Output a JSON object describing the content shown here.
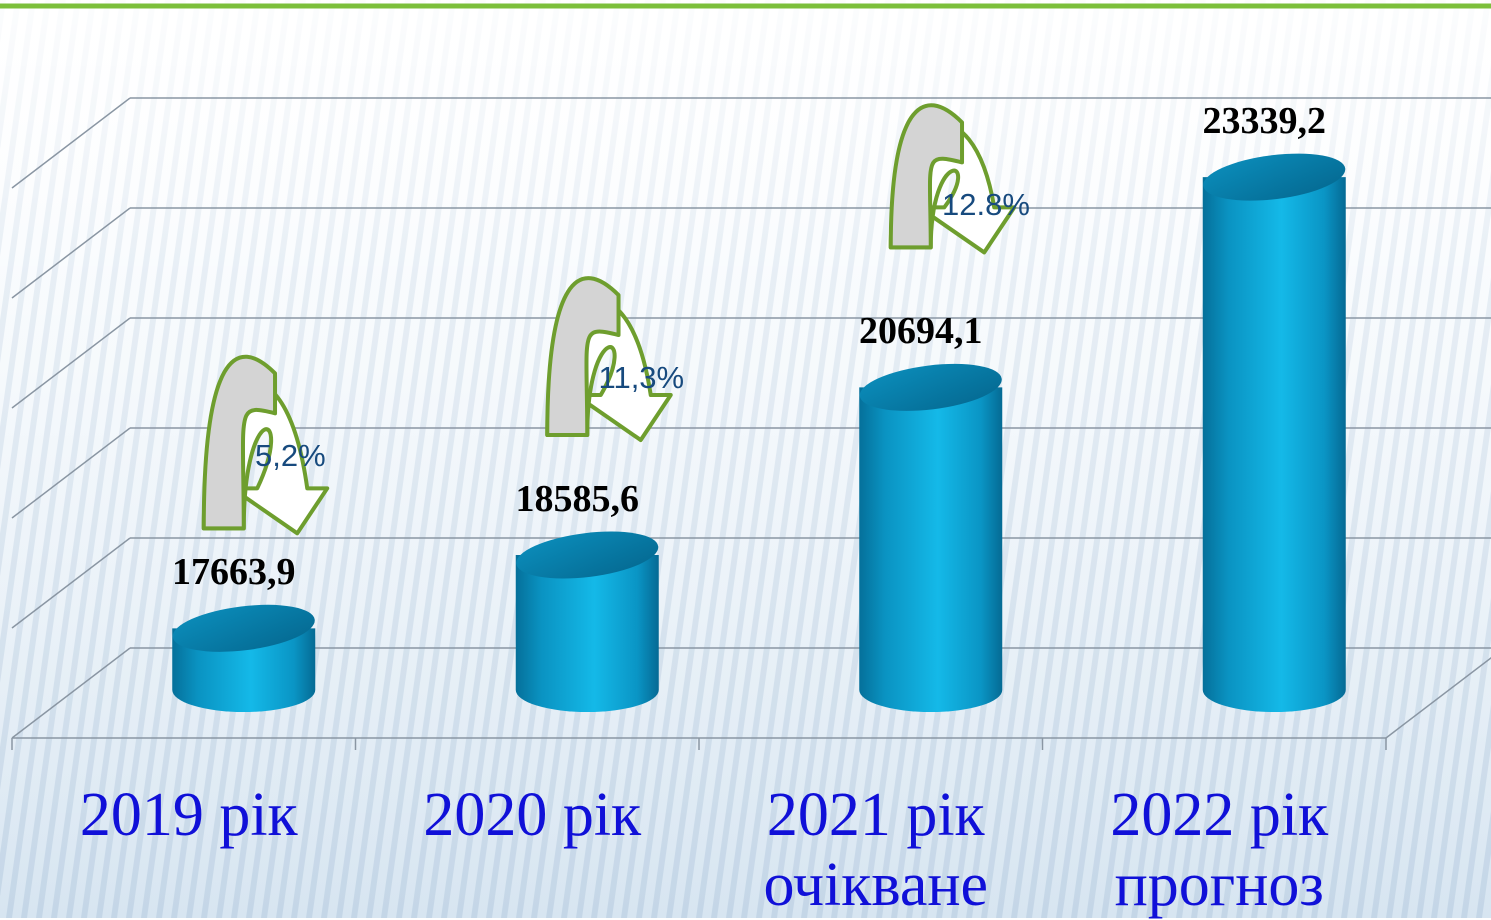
{
  "chart_data": {
    "type": "bar",
    "style": "3d-cylinder",
    "categories": [
      {
        "line1": "2019 рік",
        "line2": ""
      },
      {
        "line1": "2020 рік",
        "line2": ""
      },
      {
        "line1": "2021 рік",
        "line2": "очікване"
      },
      {
        "line1": "2022 рік",
        "line2": "прогноз"
      }
    ],
    "values": [
      17663.9,
      18585.6,
      20694.1,
      23339.2
    ],
    "value_labels": [
      "17663,9",
      "18585,6",
      "20694,1",
      "23339,2"
    ],
    "growth_arrows": [
      {
        "from": 0,
        "to": 1,
        "label": "5,2%"
      },
      {
        "from": 1,
        "to": 2,
        "label": "11,3%"
      },
      {
        "from": 2,
        "to": 3,
        "label": "12.8%"
      }
    ],
    "grid": true,
    "legend": "none",
    "colors": {
      "bar": "#0aa7d8",
      "bar_dark": "#05709a",
      "category_text": "#1010d8",
      "percent_text": "#174a7e",
      "arrow_fill": "#d4d4d4",
      "arrow_stroke": "#6e9e2e",
      "top_line": "#7cbf3b"
    }
  }
}
